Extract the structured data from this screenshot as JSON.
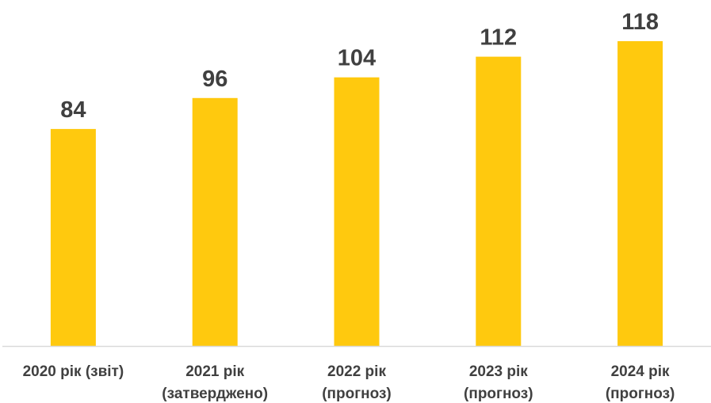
{
  "chart_data": {
    "type": "bar",
    "categories": [
      [
        "2020 рік (звіт)"
      ],
      [
        "2021 рік",
        "(затверджено)"
      ],
      [
        "2022 рік",
        "(прогноз)"
      ],
      [
        "2023 рік",
        "(прогноз)"
      ],
      [
        "2024 рік",
        "(прогноз)"
      ]
    ],
    "values": [
      84,
      96,
      104,
      112,
      118
    ],
    "data_labels": [
      "84",
      "96",
      "104",
      "112",
      "118"
    ],
    "ylim": [
      0,
      118
    ],
    "grid": false,
    "legend": "none",
    "colors": {
      "bar": "#FFC90E",
      "axis": "#D9D9D9",
      "text": "#404040"
    }
  }
}
